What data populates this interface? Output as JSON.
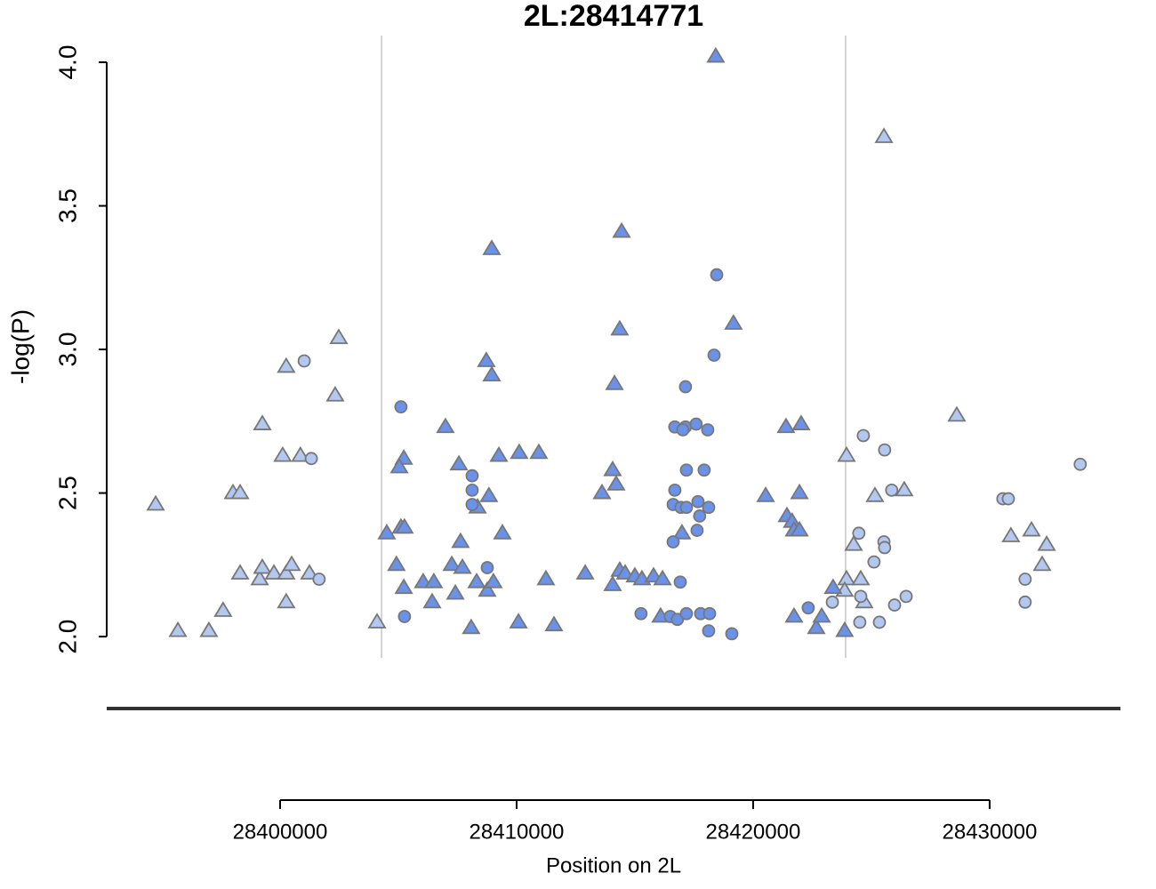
{
  "chart_data": {
    "type": "scatter",
    "title": "2L:28414771",
    "x_label": "Position on 2L",
    "y_label": "-log(P)",
    "xlim": [
      28392670,
      28435530
    ],
    "ylim": [
      1.926,
      4.093
    ],
    "xticks": [
      28400000,
      28410000,
      28420000,
      28430000
    ],
    "yticks": [
      {
        "value": 2,
        "label": "2.0"
      },
      {
        "value": 2.5,
        "label": "2.5"
      },
      {
        "value": 3,
        "label": "3.0"
      },
      {
        "value": 3.5,
        "label": "3.5"
      },
      {
        "value": 4,
        "label": "4.0"
      }
    ],
    "vlines": [
      28404290,
      28423910
    ],
    "series": [
      {
        "marker": "triangle",
        "color": "#b3c8f0",
        "x": [
          28394740,
          28395680,
          28396990,
          28397590,
          28398310,
          28398010,
          28398310,
          28399140,
          28399250,
          28399250,
          28399740,
          28400110,
          28400260,
          28400260,
          28400260,
          28400490,
          28400860,
          28401240,
          28402330,
          28402480,
          28404100,
          28423950,
          28424250,
          28423950,
          28424550,
          28424700,
          28425150,
          28425530,
          28426390,
          28428610,
          28430900,
          28431770,
          28432220,
          28432410,
          28423870
        ],
        "values": [
          2.46,
          2.02,
          2.02,
          2.09,
          2.22,
          2.5,
          2.5,
          2.2,
          2.24,
          2.74,
          2.22,
          2.63,
          2.94,
          2.22,
          2.12,
          2.25,
          2.63,
          2.22,
          2.84,
          3.04,
          2.05,
          2.63,
          2.32,
          2.2,
          2.2,
          2.12,
          2.49,
          3.74,
          2.51,
          2.77,
          2.35,
          2.37,
          2.25,
          2.32,
          2.16
        ]
      },
      {
        "marker": "circle",
        "color": "#b3c8f0",
        "x": [
          28401020,
          28401320,
          28401650,
          28424660,
          28424470,
          28424510,
          28424550,
          28425110,
          28425340,
          28425560,
          28425530,
          28425560,
          28425860,
          28425980,
          28426470,
          28430560,
          28430790,
          28431500,
          28431500,
          28433830,
          28423350
        ],
        "values": [
          2.96,
          2.62,
          2.2,
          2.7,
          2.36,
          2.05,
          2.14,
          2.26,
          2.05,
          2.65,
          2.33,
          2.31,
          2.51,
          2.11,
          2.14,
          2.48,
          2.48,
          2.2,
          2.12,
          2.6,
          2.12
        ]
      },
      {
        "marker": "triangle",
        "color": "#6a92e8",
        "x": [
          28418420,
          28414440,
          28408950,
          28419170,
          28414360,
          28408720,
          28408950,
          28414140,
          28406990,
          28421390,
          28422030,
          28405230,
          28405040,
          28407560,
          28409250,
          28410110,
          28410940,
          28414060,
          28414210,
          28413610,
          28408830,
          28408350,
          28420530,
          28421960,
          28421430,
          28421650,
          28421730,
          28421960,
          28404510,
          28405110,
          28405260,
          28407630,
          28409400,
          28416990,
          28404920,
          28405230,
          28406050,
          28406500,
          28406430,
          28407260,
          28407710,
          28407410,
          28408310,
          28408760,
          28409020,
          28408080,
          28410080,
          28411240,
          28411580,
          28412900,
          28414060,
          28414360,
          28414590,
          28415000,
          28415300,
          28415790,
          28416170,
          28416090,
          28421730,
          28422670,
          28422900,
          28423870,
          28423380
        ],
        "values": [
          4.02,
          3.41,
          3.35,
          3.09,
          3.07,
          2.96,
          2.91,
          2.88,
          2.73,
          2.73,
          2.74,
          2.62,
          2.59,
          2.6,
          2.63,
          2.64,
          2.64,
          2.58,
          2.53,
          2.5,
          2.49,
          2.45,
          2.49,
          2.5,
          2.42,
          2.4,
          2.37,
          2.37,
          2.36,
          2.38,
          2.38,
          2.33,
          2.36,
          2.36,
          2.25,
          2.17,
          2.19,
          2.19,
          2.12,
          2.25,
          2.24,
          2.15,
          2.19,
          2.16,
          2.19,
          2.03,
          2.05,
          2.2,
          2.04,
          2.22,
          2.18,
          2.23,
          2.22,
          2.21,
          2.2,
          2.21,
          2.2,
          2.07,
          2.07,
          2.03,
          2.07,
          2.02,
          2.17
        ]
      },
      {
        "marker": "circle",
        "color": "#6a92e8",
        "x": [
          28418460,
          28418350,
          28417140,
          28405110,
          28416690,
          28417140,
          28417030,
          28417590,
          28418080,
          28408120,
          28417180,
          28417930,
          28408120,
          28416690,
          28408120,
          28416620,
          28416950,
          28417180,
          28417670,
          28418120,
          28417740,
          28417630,
          28416620,
          28408760,
          28416920,
          28405260,
          28415260,
          28416500,
          28416800,
          28417180,
          28417780,
          28418160,
          28418120,
          28419100,
          28422330
        ],
        "values": [
          3.26,
          2.98,
          2.87,
          2.8,
          2.73,
          2.73,
          2.72,
          2.74,
          2.72,
          2.56,
          2.58,
          2.58,
          2.51,
          2.51,
          2.46,
          2.46,
          2.45,
          2.45,
          2.47,
          2.45,
          2.42,
          2.37,
          2.33,
          2.24,
          2.19,
          2.07,
          2.08,
          2.07,
          2.06,
          2.08,
          2.08,
          2.08,
          2.02,
          2.01,
          2.1
        ]
      }
    ]
  }
}
